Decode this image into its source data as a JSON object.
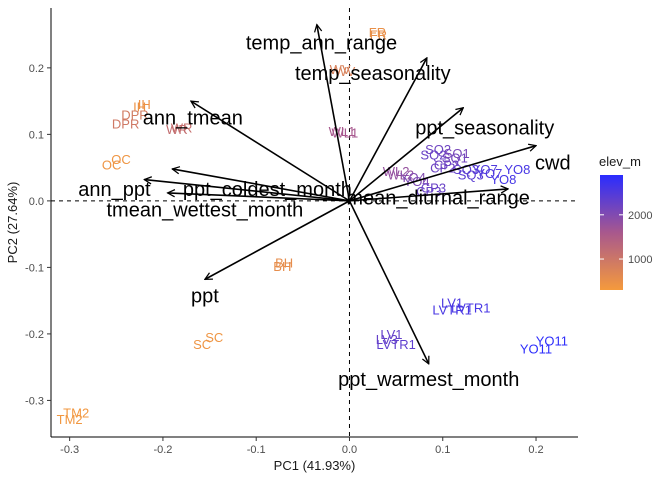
{
  "chart_data": {
    "type": "scatter",
    "subtype": "pca-biplot",
    "title": "",
    "xlabel": "PC1 (41.93%)",
    "ylabel": "PC2 (27.64%)",
    "xlim": [
      -0.32,
      0.245
    ],
    "ylim": [
      -0.355,
      0.29
    ],
    "xticks": [
      -0.3,
      -0.2,
      -0.1,
      0.0,
      0.1,
      0.2
    ],
    "xtick_labels": [
      "-0.3",
      "-0.2",
      "-0.1",
      "0.0",
      "0.1",
      "0.2"
    ],
    "yticks": [
      -0.3,
      -0.2,
      -0.1,
      0.0,
      0.1,
      0.2
    ],
    "ytick_labels": [
      "-0.3",
      "-0.2",
      "-0.1",
      "0.0",
      "0.1",
      "0.2"
    ],
    "grid": false,
    "reference_lines": {
      "x": 0,
      "y": 0,
      "style": "dashed"
    },
    "legend": {
      "title": "elev_m",
      "type": "colorbar",
      "position": "right",
      "ticks": [
        1000,
        2000
      ],
      "tick_labels": [
        "1000",
        "2000"
      ],
      "range": [
        300,
        2900
      ],
      "low_color": "#f59a3c",
      "high_color": "#2a2cff"
    },
    "loadings": [
      {
        "label": "temp_ann_range",
        "x": -0.035,
        "y": 0.265,
        "label_x": -0.03,
        "label_y": 0.238
      },
      {
        "label": "temp_seasonality",
        "x": 0.083,
        "y": 0.215,
        "label_x": 0.025,
        "label_y": 0.192
      },
      {
        "label": "ann_tmean",
        "x": -0.17,
        "y": 0.15,
        "label_x": -0.168,
        "label_y": 0.125
      },
      {
        "label": "ppt_seasonality",
        "x": 0.122,
        "y": 0.14,
        "label_x": 0.145,
        "label_y": 0.11
      },
      {
        "label": "cwd",
        "x": 0.2,
        "y": 0.083,
        "label_x": 0.218,
        "label_y": 0.058
      },
      {
        "label": "ann_ppt",
        "x": -0.22,
        "y": 0.032,
        "label_x": -0.252,
        "label_y": 0.018
      },
      {
        "label": "ppt_coldest_month",
        "x": -0.19,
        "y": 0.048,
        "label_x": -0.088,
        "label_y": 0.018
      },
      {
        "label": "mean_diurnal_range",
        "x": 0.17,
        "y": 0.018,
        "label_x": 0.095,
        "label_y": 0.005
      },
      {
        "label": "tmean_wettest_month",
        "x": -0.195,
        "y": 0.012,
        "label_x": -0.155,
        "label_y": -0.013
      },
      {
        "label": "ppt",
        "x": -0.155,
        "y": -0.118,
        "label_x": -0.155,
        "label_y": -0.142
      },
      {
        "label": "ppt_warmest_month",
        "x": 0.085,
        "y": -0.245,
        "label_x": 0.085,
        "label_y": -0.268
      }
    ],
    "points": [
      {
        "label": "FR",
        "x": 0.03,
        "y": 0.254,
        "elev": 500
      },
      {
        "label": "FR",
        "x": 0.031,
        "y": 0.25,
        "elev": 520
      },
      {
        "label": "WV",
        "x": -0.01,
        "y": 0.198,
        "elev": 800
      },
      {
        "label": "WV",
        "x": -0.005,
        "y": 0.195,
        "elev": 780
      },
      {
        "label": "IH",
        "x": -0.225,
        "y": 0.142,
        "elev": 450
      },
      {
        "label": "IH",
        "x": -0.22,
        "y": 0.146,
        "elev": 460
      },
      {
        "label": "DPR",
        "x": -0.23,
        "y": 0.13,
        "elev": 900
      },
      {
        "label": "DPR",
        "x": -0.24,
        "y": 0.116,
        "elev": 950
      },
      {
        "label": "WR",
        "x": -0.18,
        "y": 0.11,
        "elev": 1100
      },
      {
        "label": "WR",
        "x": -0.185,
        "y": 0.108,
        "elev": 1150
      },
      {
        "label": "WL1",
        "x": -0.008,
        "y": 0.105,
        "elev": 1600
      },
      {
        "label": "WL1",
        "x": -0.005,
        "y": 0.103,
        "elev": 1620
      },
      {
        "label": "OC",
        "x": -0.245,
        "y": 0.063,
        "elev": 400
      },
      {
        "label": "OC",
        "x": -0.255,
        "y": 0.055,
        "elev": 420
      },
      {
        "label": "SQ2",
        "x": 0.095,
        "y": 0.078,
        "elev": 2200
      },
      {
        "label": "SQ2",
        "x": 0.09,
        "y": 0.07,
        "elev": 2250
      },
      {
        "label": "SQ1",
        "x": 0.115,
        "y": 0.072,
        "elev": 2100
      },
      {
        "label": "SQ1",
        "x": 0.113,
        "y": 0.065,
        "elev": 2150
      },
      {
        "label": "SQ3",
        "x": 0.125,
        "y": 0.048,
        "elev": 2350
      },
      {
        "label": "SQ3",
        "x": 0.13,
        "y": 0.04,
        "elev": 2400
      },
      {
        "label": "YO7",
        "x": 0.145,
        "y": 0.048,
        "elev": 2500
      },
      {
        "label": "YO7",
        "x": 0.15,
        "y": 0.042,
        "elev": 2520
      },
      {
        "label": "YO8",
        "x": 0.18,
        "y": 0.048,
        "elev": 2600
      },
      {
        "label": "YO8",
        "x": 0.165,
        "y": 0.033,
        "elev": 2620
      },
      {
        "label": "WL2",
        "x": 0.05,
        "y": 0.045,
        "elev": 1800
      },
      {
        "label": "WL2",
        "x": 0.055,
        "y": 0.04,
        "elev": 1820
      },
      {
        "label": "YO4",
        "x": 0.068,
        "y": 0.036,
        "elev": 2000
      },
      {
        "label": "YO4",
        "x": 0.072,
        "y": 0.03,
        "elev": 2050
      },
      {
        "label": "CP2",
        "x": 0.104,
        "y": 0.055,
        "elev": 2200
      },
      {
        "label": "CP2",
        "x": 0.1,
        "y": 0.05,
        "elev": 2220
      },
      {
        "label": "CP3",
        "x": 0.09,
        "y": 0.02,
        "elev": 2250
      },
      {
        "label": "CP3",
        "x": 0.085,
        "y": 0.015,
        "elev": 2260
      },
      {
        "label": "YO11",
        "x": 0.217,
        "y": -0.21,
        "elev": 2850
      },
      {
        "label": "YO11",
        "x": 0.2,
        "y": -0.222,
        "elev": 2870
      },
      {
        "label": "LV1",
        "x": 0.11,
        "y": -0.153,
        "elev": 2550
      },
      {
        "label": "LV1",
        "x": 0.045,
        "y": -0.2,
        "elev": 2300
      },
      {
        "label": "LVTR1",
        "x": 0.13,
        "y": -0.16,
        "elev": 2600
      },
      {
        "label": "LVTR1",
        "x": 0.11,
        "y": -0.163,
        "elev": 2580
      },
      {
        "label": "LVTR1",
        "x": 0.05,
        "y": -0.215,
        "elev": 2350
      },
      {
        "label": "LV3",
        "x": 0.04,
        "y": -0.208,
        "elev": 2280
      },
      {
        "label": "BH",
        "x": -0.07,
        "y": -0.093,
        "elev": 550
      },
      {
        "label": "BH",
        "x": -0.072,
        "y": -0.098,
        "elev": 560
      },
      {
        "label": "SC",
        "x": -0.145,
        "y": -0.205,
        "elev": 400
      },
      {
        "label": "SC",
        "x": -0.158,
        "y": -0.215,
        "elev": 410
      },
      {
        "label": "TM2",
        "x": -0.293,
        "y": -0.318,
        "elev": 350
      },
      {
        "label": "TM2",
        "x": -0.3,
        "y": -0.328,
        "elev": 360
      }
    ]
  }
}
